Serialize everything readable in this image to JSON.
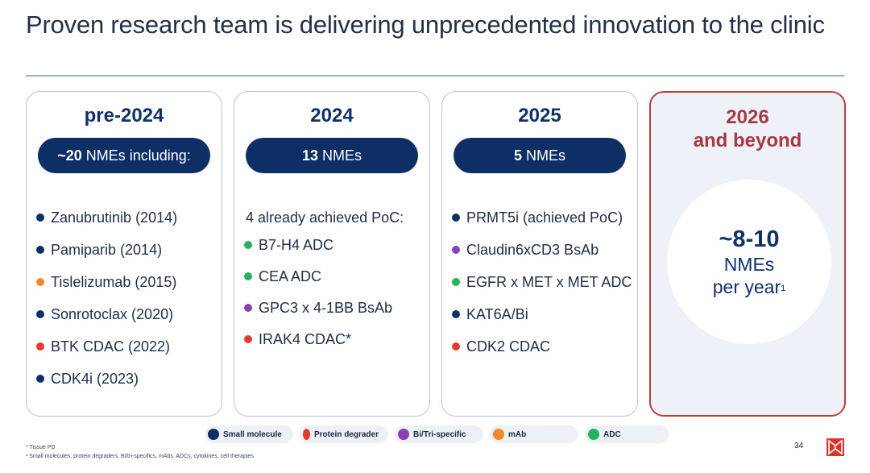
{
  "title": "Proven research team is delivering unprecedented innovation to the clinic",
  "colors": {
    "small_molecule": "#0e2f66",
    "protein_degrader": "#e63a2e",
    "bi_tri_specific": "#8a3fb8",
    "mab": "#f0892a",
    "adc": "#22b45a"
  },
  "columns": [
    {
      "year": "pre-2024",
      "pill_bold": "~20",
      "pill_text": "NMEs including:",
      "items": [
        {
          "label": "Zanubrutinib (2014)",
          "type": "small_molecule"
        },
        {
          "label": "Pamiparib (2014)",
          "type": "small_molecule"
        },
        {
          "label": "Tislelizumab (2015)",
          "type": "mab"
        },
        {
          "label": "Sonrotoclax (2020)",
          "type": "small_molecule"
        },
        {
          "label": "BTK CDAC (2022)",
          "type": "protein_degrader"
        },
        {
          "label": "CDK4i (2023)",
          "type": "small_molecule"
        }
      ]
    },
    {
      "year": "2024",
      "pill_bold": "13",
      "pill_text": "NMEs",
      "lead": "4 already achieved PoC:",
      "items": [
        {
          "label": "B7-H4 ADC",
          "type": "adc"
        },
        {
          "label": "CEA ADC",
          "type": "adc"
        },
        {
          "label": "GPC3 x 4-1BB BsAb",
          "type": "bi_tri_specific"
        },
        {
          "label": "IRAK4 CDAC*",
          "type": "protein_degrader"
        }
      ]
    },
    {
      "year": "2025",
      "pill_bold": "5",
      "pill_text": "NMEs",
      "items": [
        {
          "label": "PRMT5i (achieved PoC)",
          "type": "small_molecule"
        },
        {
          "label": "Claudin6xCD3 BsAb",
          "type": "bi_tri_specific"
        },
        {
          "label": "EGFR x MET x MET ADC",
          "type": "adc"
        },
        {
          "label": "KAT6A/Bi",
          "type": "small_molecule"
        },
        {
          "label": "CDK2 CDAC",
          "type": "protein_degrader"
        }
      ]
    },
    {
      "year_line1": "2026",
      "year_line2": "and beyond",
      "big": "~8-10",
      "sub1": "NMEs",
      "sub2": "per year",
      "sup": "1"
    }
  ],
  "legend": [
    {
      "label": "Small molecule",
      "type": "small_molecule"
    },
    {
      "label": "Protein degrader",
      "type": "protein_degrader"
    },
    {
      "label": "Bi/Tri-specific",
      "type": "bi_tri_specific"
    },
    {
      "label": "mAb",
      "type": "mab"
    },
    {
      "label": "ADC",
      "type": "adc"
    }
  ],
  "footnotes": {
    "tissue": "* Tissue PD",
    "note1": "¹  Small molecules, protein degraders, Bi/tri-specifics, mAbs, ADCs, cytokines, cell therapies"
  },
  "page_number": "34",
  "logo_icon": "beigene-logo-icon"
}
